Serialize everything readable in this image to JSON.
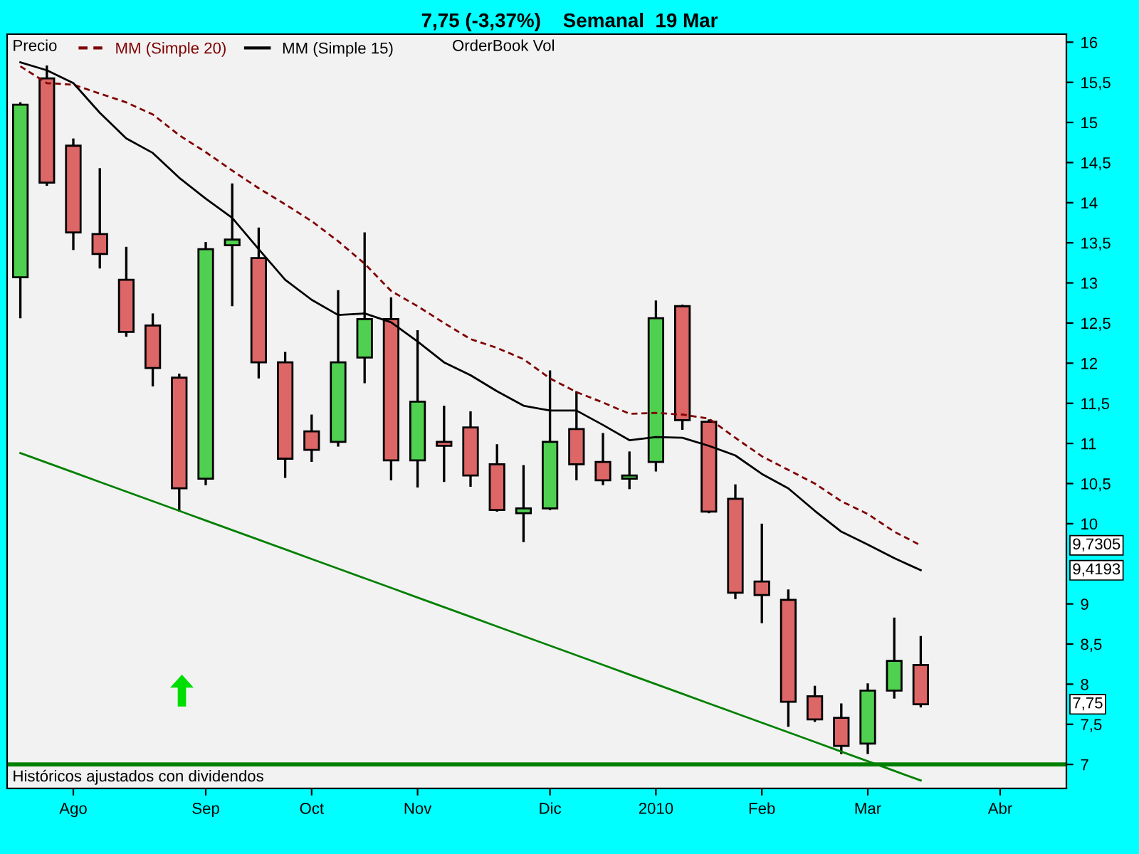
{
  "chart_data": {
    "type": "candlestick",
    "title": "7,75 (-3,37%)    Semanal  19 Mar",
    "categories": [
      null,
      null,
      "Ago",
      null,
      null,
      null,
      null,
      "Sep",
      null,
      null,
      null,
      "Oct",
      null,
      null,
      null,
      "Nov",
      null,
      null,
      null,
      null,
      "Dic",
      null,
      null,
      null,
      "2010",
      null,
      null,
      null,
      "Feb",
      null,
      null,
      null,
      "Mar",
      null,
      null,
      null,
      null,
      "Abr",
      null,
      null
    ],
    "ohlc": [
      [
        13.07,
        15.25,
        12.56,
        15.22
      ],
      [
        15.55,
        15.71,
        14.21,
        14.25
      ],
      [
        14.71,
        14.8,
        13.41,
        13.63
      ],
      [
        13.61,
        14.43,
        13.18,
        13.36
      ],
      [
        13.04,
        13.45,
        12.33,
        12.39
      ],
      [
        12.47,
        12.62,
        11.71,
        11.94
      ],
      [
        11.82,
        11.87,
        10.15,
        10.44
      ],
      [
        10.56,
        13.51,
        10.48,
        13.42
      ],
      [
        13.47,
        14.24,
        12.71,
        13.54
      ],
      [
        13.31,
        13.69,
        11.81,
        12.01
      ],
      [
        12.01,
        12.14,
        10.57,
        10.81
      ],
      [
        11.15,
        11.36,
        10.77,
        10.92
      ],
      [
        11.02,
        12.91,
        10.96,
        12.01
      ],
      [
        12.07,
        13.63,
        11.75,
        12.55
      ],
      [
        12.55,
        12.82,
        10.54,
        10.79
      ],
      [
        10.79,
        12.41,
        10.45,
        11.52
      ],
      [
        11.02,
        11.47,
        10.52,
        10.97
      ],
      [
        11.2,
        11.4,
        10.46,
        10.6
      ],
      [
        10.74,
        10.99,
        10.15,
        10.17
      ],
      [
        10.13,
        10.73,
        9.77,
        10.19
      ],
      [
        10.19,
        11.91,
        10.17,
        11.02
      ],
      [
        11.18,
        11.65,
        10.54,
        10.74
      ],
      [
        10.77,
        11.13,
        10.48,
        10.54
      ],
      [
        10.56,
        10.9,
        10.43,
        10.6
      ],
      [
        10.77,
        12.78,
        10.65,
        12.56
      ],
      [
        12.71,
        12.73,
        11.17,
        11.29
      ],
      [
        11.27,
        11.3,
        10.13,
        10.15
      ],
      [
        10.31,
        10.49,
        9.06,
        9.14
      ],
      [
        9.28,
        10.0,
        8.76,
        9.11
      ],
      [
        9.05,
        9.18,
        7.47,
        7.78
      ],
      [
        7.85,
        7.98,
        7.53,
        7.56
      ],
      [
        7.58,
        7.76,
        7.13,
        7.23
      ],
      [
        7.26,
        8.01,
        7.13,
        7.92
      ],
      [
        7.92,
        8.83,
        7.82,
        8.29
      ],
      [
        8.24,
        8.6,
        7.71,
        7.75
      ],
      null,
      null,
      null,
      null,
      null
    ],
    "colors": [
      "#50d050",
      "#dd6666",
      "#dd6666",
      "#dd6666",
      "#dd6666",
      "#dd6666",
      "#dd6666",
      "#50d050",
      "#50d050",
      "#dd6666",
      "#dd6666",
      "#dd6666",
      "#50d050",
      "#50d050",
      "#dd6666",
      "#50d050",
      "#dd6666",
      "#dd6666",
      "#dd6666",
      "#50d050",
      "#50d050",
      "#dd6666",
      "#dd6666",
      "#50d050",
      "#50d050",
      "#dd6666",
      "#dd6666",
      "#dd6666",
      "#dd6666",
      "#dd6666",
      "#dd6666",
      "#dd6666",
      "#50d050",
      "#50d050",
      "#dd6666",
      null,
      null,
      null,
      null,
      null
    ],
    "series": [
      {
        "name": "MM (Simple 20)",
        "type": "line",
        "color": "#800000",
        "line_style": "dashed",
        "values": [
          15.7,
          15.49,
          15.47,
          15.36,
          15.25,
          15.1,
          14.84,
          14.63,
          14.4,
          14.18,
          13.98,
          13.77,
          13.52,
          13.24,
          12.9,
          12.71,
          12.5,
          12.3,
          12.19,
          12.05,
          11.81,
          11.64,
          11.51,
          11.37,
          11.38,
          11.36,
          11.31,
          11.07,
          10.84,
          10.67,
          10.5,
          10.28,
          10.12,
          9.9,
          9.73,
          null,
          null,
          null,
          null,
          null
        ]
      },
      {
        "name": "MM (Simple 15)",
        "type": "line",
        "color": "#000000",
        "line_style": "solid",
        "values": [
          15.75,
          15.65,
          15.49,
          15.12,
          14.8,
          14.62,
          14.31,
          14.05,
          13.81,
          13.42,
          13.04,
          12.79,
          12.6,
          12.62,
          12.51,
          12.27,
          12.01,
          11.85,
          11.65,
          11.47,
          11.41,
          11.41,
          11.23,
          11.04,
          11.08,
          11.07,
          10.97,
          10.85,
          10.62,
          10.44,
          10.16,
          9.9,
          9.74,
          9.57,
          9.42,
          null,
          null,
          null,
          null,
          null
        ]
      },
      {
        "type": "line",
        "color": "#008000",
        "line_style": "solid",
        "values": [
          10.88,
          10.76,
          10.64,
          10.52,
          10.4,
          10.28,
          10.16,
          10.04,
          9.92,
          9.8,
          9.68,
          9.56,
          9.44,
          9.32,
          9.2,
          9.08,
          8.96,
          8.84,
          8.72,
          8.6,
          8.48,
          8.36,
          8.24,
          8.12,
          8.0,
          7.88,
          7.76,
          7.64,
          7.52,
          7.4,
          7.28,
          7.16,
          7.04,
          6.92,
          6.8,
          null,
          null,
          null,
          null,
          null
        ]
      }
    ],
    "ylim": [
      6.7,
      16.1
    ],
    "yticks": [
      7,
      {
        "value": 7.5,
        "label": "7,5"
      },
      8,
      {
        "value": 8.5,
        "label": "8,5"
      },
      9,
      10,
      {
        "value": 10.5,
        "label": "10,5"
      },
      11,
      {
        "value": 11.5,
        "label": "11,5"
      },
      12,
      {
        "value": 12.5,
        "label": "12,5"
      },
      13,
      {
        "value": 13.5,
        "label": "13,5"
      },
      14,
      {
        "value": 14.5,
        "label": "14,5"
      },
      15,
      {
        "value": 15.5,
        "label": "15,5"
      },
      16
    ],
    "ref_lines": [
      {
        "axis": "y",
        "value": 7,
        "color": "#008000",
        "line_style": "solid"
      }
    ],
    "annotations": [
      {
        "text": "9,7305",
        "y": 9.7305
      },
      {
        "text": "9,4193",
        "y": 9.4193
      },
      {
        "text": "7,75",
        "y": 7.75
      },
      "Precio",
      "OrderBook Vol",
      "Históricos ajustados con dividendos"
    ],
    "legend": "top left",
    "grid": false
  }
}
